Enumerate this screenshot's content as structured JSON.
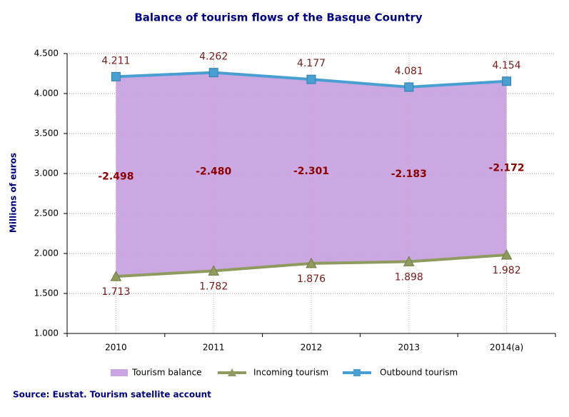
{
  "chart_data": {
    "type": "line",
    "title": "Balance of tourism  flows of the Basque Country",
    "y_label": "Millions  of euros",
    "source": "Source: Eustat. Tourism satellite account",
    "categories": [
      "2010",
      "2011",
      "2012",
      "2013",
      "2014(a)"
    ],
    "series": [
      {
        "name": "Tourism balance",
        "color": "#c9a3e2",
        "values": [
          -2498,
          -2480,
          -2301,
          -2183,
          -2172
        ],
        "value_labels": [
          "-2.498",
          "-2.480",
          "-2.301",
          "-2.183",
          "-2.172"
        ]
      },
      {
        "name": "Incoming tourism",
        "color": "#8e9a5e",
        "values": [
          1713,
          1782,
          1876,
          1898,
          1982
        ],
        "value_labels": [
          "1.713",
          "1.782",
          "1.876",
          "1.898",
          "1.982"
        ]
      },
      {
        "name": "Outbound tourism",
        "color": "#4a9fd2",
        "values": [
          4211,
          4262,
          4177,
          4081,
          4154
        ],
        "value_labels": [
          "4.211",
          "4.262",
          "4.177",
          "4.081",
          "4.154"
        ]
      }
    ],
    "ylim": [
      1000,
      4500
    ],
    "yticks": [
      {
        "value": 1000,
        "label": "1.000"
      },
      {
        "value": 1500,
        "label": "1.500"
      },
      {
        "value": 2000,
        "label": "2.000"
      },
      {
        "value": 2500,
        "label": "2.500"
      },
      {
        "value": 3000,
        "label": "3.000"
      },
      {
        "value": 3500,
        "label": "3.500"
      },
      {
        "value": 4000,
        "label": "4.000"
      },
      {
        "value": 4500,
        "label": "4.500"
      }
    ],
    "grid": true
  }
}
